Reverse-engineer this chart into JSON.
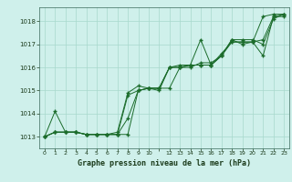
{
  "title": "Graphe pression niveau de la mer (hPa)",
  "background_color": "#cff0eb",
  "grid_color": "#a8d8cc",
  "line_color": "#1a6b2a",
  "marker_color": "#1a6b2a",
  "xlim": [
    -0.5,
    23.5
  ],
  "ylim": [
    1012.5,
    1018.6
  ],
  "yticks": [
    1013,
    1014,
    1015,
    1016,
    1017,
    1018
  ],
  "xtick_labels": [
    "0",
    "1",
    "2",
    "3",
    "4",
    "5",
    "6",
    "7",
    "8",
    "9",
    "10",
    "",
    "12",
    "13",
    "14",
    "15",
    "16",
    "17",
    "18",
    "19",
    "20",
    "21",
    "22",
    "23"
  ],
  "series": [
    [
      1013.0,
      1014.1,
      1013.2,
      1013.2,
      1013.1,
      1013.1,
      1013.1,
      1013.1,
      1014.8,
      1015.0,
      1015.1,
      1015.1,
      1015.1,
      1016.0,
      1016.1,
      1017.2,
      1016.1,
      1016.5,
      1017.2,
      1017.0,
      1017.1,
      1018.2,
      1018.3,
      1018.3
    ],
    [
      1013.0,
      1013.2,
      1013.2,
      1013.2,
      1013.1,
      1013.1,
      1013.1,
      1013.1,
      1013.1,
      1015.0,
      1015.1,
      1015.0,
      1016.0,
      1016.1,
      1016.1,
      1016.1,
      1016.1,
      1016.5,
      1017.1,
      1017.1,
      1017.1,
      1016.5,
      1018.2,
      1018.2
    ],
    [
      1013.0,
      1013.2,
      1013.2,
      1013.2,
      1013.1,
      1013.1,
      1013.1,
      1013.1,
      1013.8,
      1015.0,
      1015.1,
      1015.1,
      1016.0,
      1016.0,
      1016.1,
      1016.1,
      1016.1,
      1016.6,
      1017.1,
      1017.1,
      1017.1,
      1017.2,
      1018.2,
      1018.3
    ],
    [
      1013.0,
      1013.2,
      1013.2,
      1013.2,
      1013.1,
      1013.1,
      1013.1,
      1013.2,
      1014.9,
      1015.2,
      1015.1,
      1015.1,
      1016.0,
      1016.0,
      1016.0,
      1016.2,
      1016.2,
      1016.5,
      1017.2,
      1017.2,
      1017.2,
      1017.0,
      1018.1,
      1018.3
    ]
  ]
}
